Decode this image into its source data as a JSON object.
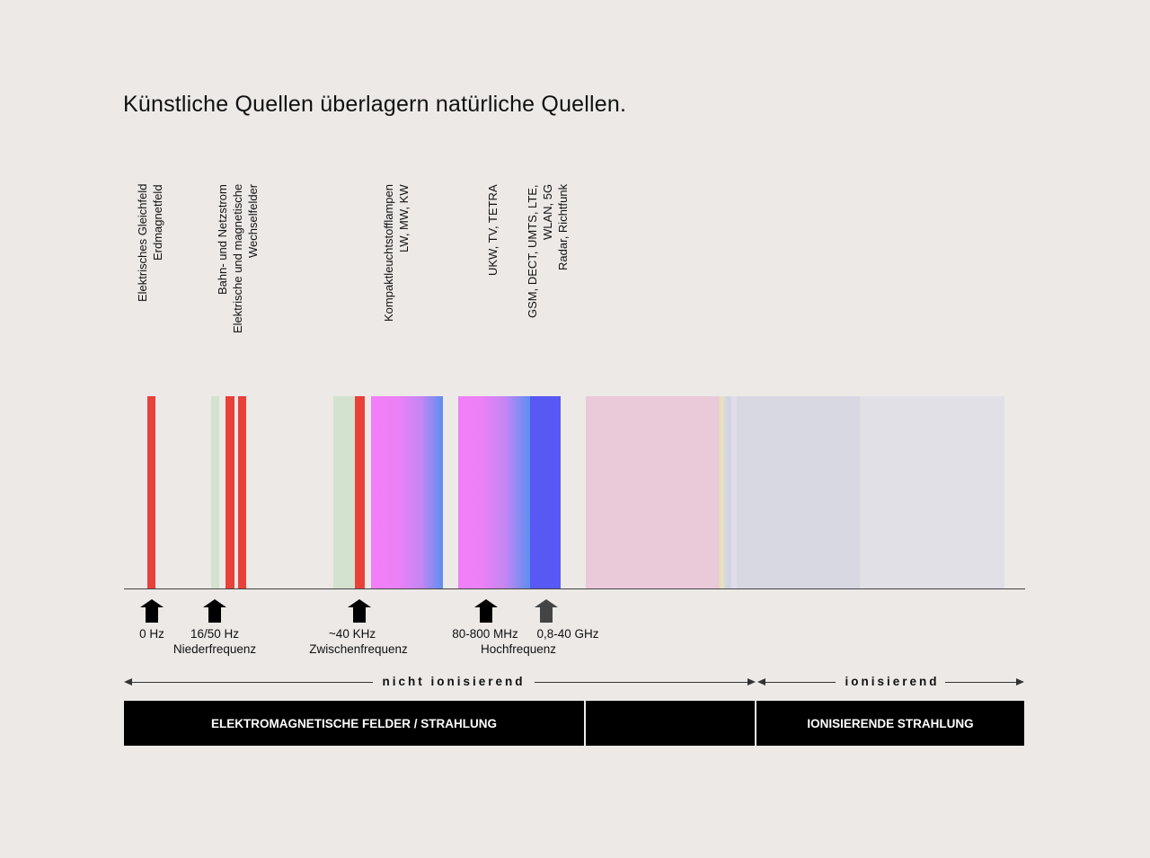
{
  "title": "Künstliche Quellen überlagern natürliche Quellen.",
  "source_labels": [
    {
      "lines": [
        "Elektrisches Gleichfeld",
        "Erdmagnetfeld"
      ]
    },
    {
      "lines": [
        "Bahn- und Netzstrom",
        "Elektrische und magnetische",
        "Wechselfelder"
      ]
    },
    {
      "lines": [
        "Kompaktleuchtstofflampen",
        "LW, MW, KW"
      ]
    },
    {
      "lines": [
        "UKW, TV, TETRA"
      ]
    },
    {
      "lines": [
        "GSM, DECT, UMTS, LTE,",
        "WLAN, 5G",
        "Radar, Richtfunk"
      ]
    }
  ],
  "colors": {
    "artificial_red": "#e8413a",
    "natural_green": "#d3e2cf",
    "gradient_pink": "#f07ff8",
    "gradient_blue": "#5b8ff0",
    "microwave_blue": "#5858f5",
    "infrared_pink": "#eac9d8",
    "uv_gray": "#d8d8e2",
    "xray_gray": "#e1e0e6",
    "background": "#ece9e7"
  },
  "frequency_markers": [
    {
      "label": "0 Hz",
      "arrow": "black"
    },
    {
      "label": "16/50 Hz",
      "arrow": "black"
    },
    {
      "label": "~40 KHz",
      "arrow": "black"
    },
    {
      "label": "80-800 MHz",
      "arrow": "black"
    },
    {
      "label": "0,8-40 GHz",
      "arrow": "gray"
    }
  ],
  "frequency_bands": [
    "Niederfrequenz",
    "Zwischenfrequenz",
    "Hochfrequenz"
  ],
  "ionization": {
    "non_ionizing": "nicht ionisierend",
    "ionizing": "ionisierend"
  },
  "categories": {
    "em_fields": "ELEKTROMAGNETISCHE FELDER / STRAHLUNG",
    "middle": "",
    "ionizing_radiation": "IONISIERENDE STRAHLUNG"
  }
}
